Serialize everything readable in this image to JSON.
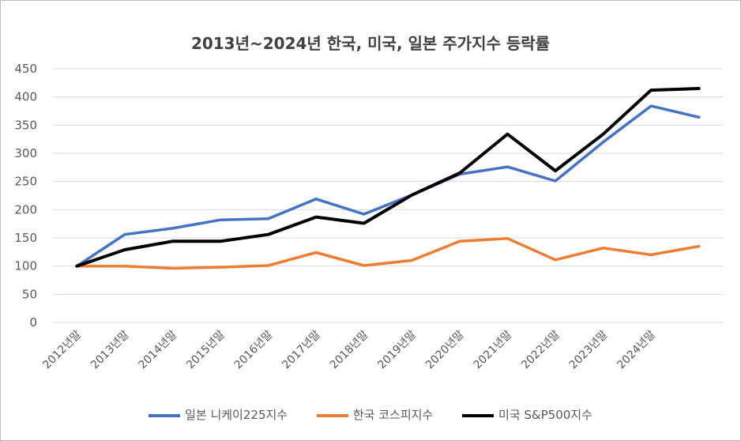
{
  "chart_data": {
    "type": "line",
    "title": "2013년~2024년 한국, 미국, 일본 주가지수 등락률",
    "xlabel": "",
    "ylabel": "",
    "ylim": [
      0,
      450
    ],
    "yticks": [
      0,
      50,
      100,
      150,
      200,
      250,
      300,
      350,
      400,
      450
    ],
    "grid": true,
    "legend_position": "bottom",
    "categories": [
      "2012년말",
      "2013년말",
      "2014년말",
      "2015년말",
      "2016년말",
      "2017년말",
      "2018년말",
      "2019년말",
      "2020년말",
      "2021년말",
      "2022년말",
      "2023년말",
      "2024년말",
      ""
    ],
    "series": [
      {
        "name": "일본 니케이225지수",
        "color": "#4472c4",
        "values": [
          100,
          156,
          167,
          182,
          184,
          219,
          192,
          226,
          263,
          276,
          251,
          320,
          384,
          364
        ]
      },
      {
        "name": "한국 코스피지수",
        "color": "#ed7d31",
        "values": [
          100,
          100,
          96,
          98,
          101,
          124,
          101,
          110,
          144,
          149,
          111,
          132,
          120,
          135
        ]
      },
      {
        "name": "미국 S&P500지수",
        "color": "#000000",
        "values": [
          100,
          129,
          144,
          144,
          156,
          187,
          176,
          226,
          265,
          334,
          269,
          334,
          412,
          415
        ]
      }
    ]
  }
}
